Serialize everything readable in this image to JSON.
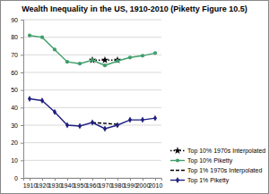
{
  "chart_data": {
    "type": "line",
    "title": "Wealth Inequality in the US, 1910-2010 (Piketty Figure 10.5)",
    "x": [
      1910,
      1920,
      1930,
      1940,
      1950,
      1960,
      1970,
      1980,
      1990,
      2000,
      2010
    ],
    "xlim": [
      1905,
      2015
    ],
    "xticks": [
      1910,
      1920,
      1930,
      1940,
      1950,
      1960,
      1970,
      1980,
      1990,
      2000,
      2010
    ],
    "ylim": [
      0,
      90
    ],
    "yticks": [
      0,
      10,
      20,
      30,
      40,
      50,
      60,
      70,
      80,
      90
    ],
    "grid": true,
    "legend": "lower right",
    "series": [
      {
        "name": "Top 10% 1970s Interpolated",
        "color": "#000000",
        "marker": "star",
        "line_style": "dotted",
        "values": [
          null,
          null,
          null,
          null,
          null,
          67,
          67,
          67,
          null,
          null,
          null
        ]
      },
      {
        "name": "Top 10% Piketty",
        "color": "#3f9e6a",
        "marker": "circle",
        "line_style": "solid",
        "values": [
          81,
          80,
          73,
          66,
          65,
          67,
          64,
          66.5,
          68.5,
          69.5,
          71
        ]
      },
      {
        "name": "Top 1% 1970s Interpolated",
        "color": "#000000",
        "marker": "none",
        "line_style": "dashed",
        "values": [
          null,
          null,
          null,
          null,
          null,
          31.5,
          31,
          30.5,
          null,
          null,
          null
        ]
      },
      {
        "name": "Top 1% Piketty",
        "color": "#1f1f80",
        "marker": "diamond",
        "line_style": "solid",
        "values": [
          45,
          44,
          37.5,
          30,
          29.5,
          31.5,
          28,
          30,
          33,
          33,
          34
        ]
      }
    ]
  }
}
